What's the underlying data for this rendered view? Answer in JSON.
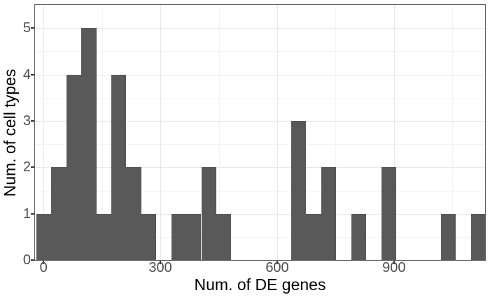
{
  "figure": {
    "background_color": "#ffffff",
    "bar_color": "#595959",
    "panel_border_color": "#606060",
    "grid_major_color": "#e7e7e7",
    "grid_minor_color": "#f3f3f3",
    "tick_mark_color": "#333333",
    "tick_label_color": "#4d4d4d",
    "axis_title_color": "#000000"
  },
  "chart_data": {
    "type": "bar",
    "subtype": "histogram",
    "title": "",
    "xlabel": "Num. of DE genes",
    "ylabel": "Num. of cell types",
    "xlim": [
      -22,
      1134
    ],
    "ylim": [
      0,
      5.5
    ],
    "grid": true,
    "legend": false,
    "x_ticks": [
      0,
      300,
      600,
      900
    ],
    "x_tick_labels": [
      "0",
      "300",
      "600",
      "900"
    ],
    "x_minor_gridlines": [
      150,
      450,
      750,
      1050
    ],
    "y_ticks": [
      0,
      1,
      2,
      3,
      4,
      5
    ],
    "y_tick_labels": [
      "0",
      "1",
      "2",
      "3",
      "4",
      "5"
    ],
    "y_minor_gridlines": [
      0.5,
      1.5,
      2.5,
      3.5,
      4.5
    ],
    "bin_width": 38.5,
    "bins": [
      {
        "x0": -18.5,
        "x1": 20,
        "count": 1
      },
      {
        "x0": 20,
        "x1": 58.5,
        "count": 2
      },
      {
        "x0": 58.5,
        "x1": 97,
        "count": 4
      },
      {
        "x0": 97,
        "x1": 135.5,
        "count": 5
      },
      {
        "x0": 135.5,
        "x1": 174,
        "count": 1
      },
      {
        "x0": 174,
        "x1": 212.5,
        "count": 4
      },
      {
        "x0": 212.5,
        "x1": 251,
        "count": 2
      },
      {
        "x0": 251,
        "x1": 289.5,
        "count": 1
      },
      {
        "x0": 289.5,
        "x1": 328,
        "count": 0
      },
      {
        "x0": 328,
        "x1": 366.5,
        "count": 1
      },
      {
        "x0": 366.5,
        "x1": 405,
        "count": 1
      },
      {
        "x0": 405,
        "x1": 443.5,
        "count": 2
      },
      {
        "x0": 443.5,
        "x1": 482,
        "count": 1
      },
      {
        "x0": 482,
        "x1": 520.5,
        "count": 0
      },
      {
        "x0": 520.5,
        "x1": 559,
        "count": 0
      },
      {
        "x0": 559,
        "x1": 597.5,
        "count": 0
      },
      {
        "x0": 597.5,
        "x1": 636,
        "count": 0
      },
      {
        "x0": 636,
        "x1": 674.5,
        "count": 3
      },
      {
        "x0": 674.5,
        "x1": 713,
        "count": 1
      },
      {
        "x0": 713,
        "x1": 751.5,
        "count": 2
      },
      {
        "x0": 751.5,
        "x1": 790,
        "count": 0
      },
      {
        "x0": 790,
        "x1": 828.5,
        "count": 1
      },
      {
        "x0": 828.5,
        "x1": 867,
        "count": 0
      },
      {
        "x0": 867,
        "x1": 905.5,
        "count": 2
      },
      {
        "x0": 905.5,
        "x1": 944,
        "count": 0
      },
      {
        "x0": 944,
        "x1": 982.5,
        "count": 0
      },
      {
        "x0": 982.5,
        "x1": 1021,
        "count": 0
      },
      {
        "x0": 1021,
        "x1": 1059.5,
        "count": 1
      },
      {
        "x0": 1059.5,
        "x1": 1098,
        "count": 0
      },
      {
        "x0": 1098,
        "x1": 1136.5,
        "count": 1
      }
    ]
  }
}
